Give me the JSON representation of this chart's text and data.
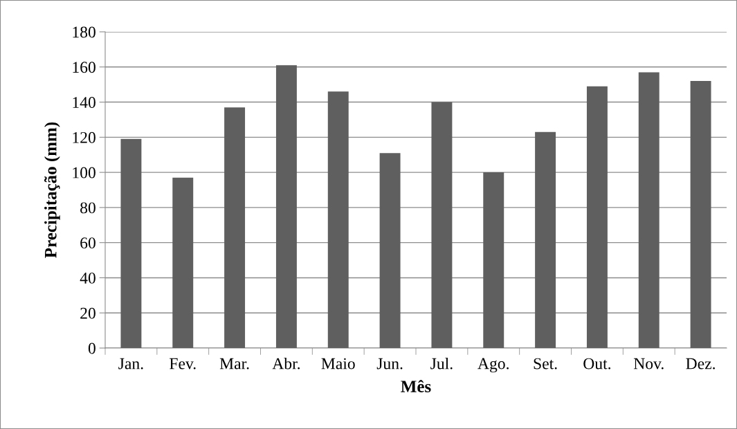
{
  "chart_data": {
    "type": "bar",
    "xlabel": "Mês",
    "ylabel": "Precipitação (mm)",
    "categories": [
      "Jan.",
      "Fev.",
      "Mar.",
      "Abr.",
      "Maio",
      "Jun.",
      "Jul.",
      "Ago.",
      "Set.",
      "Out.",
      "Nov.",
      "Dez."
    ],
    "values": [
      119,
      97,
      137,
      161,
      146,
      111,
      140,
      100,
      123,
      149,
      157,
      152
    ],
    "color": "#5f5f5f",
    "ylim": [
      0,
      180
    ],
    "yticks": [
      0,
      20,
      40,
      60,
      80,
      100,
      120,
      140,
      160,
      180
    ],
    "grid": "y",
    "legend": false
  }
}
